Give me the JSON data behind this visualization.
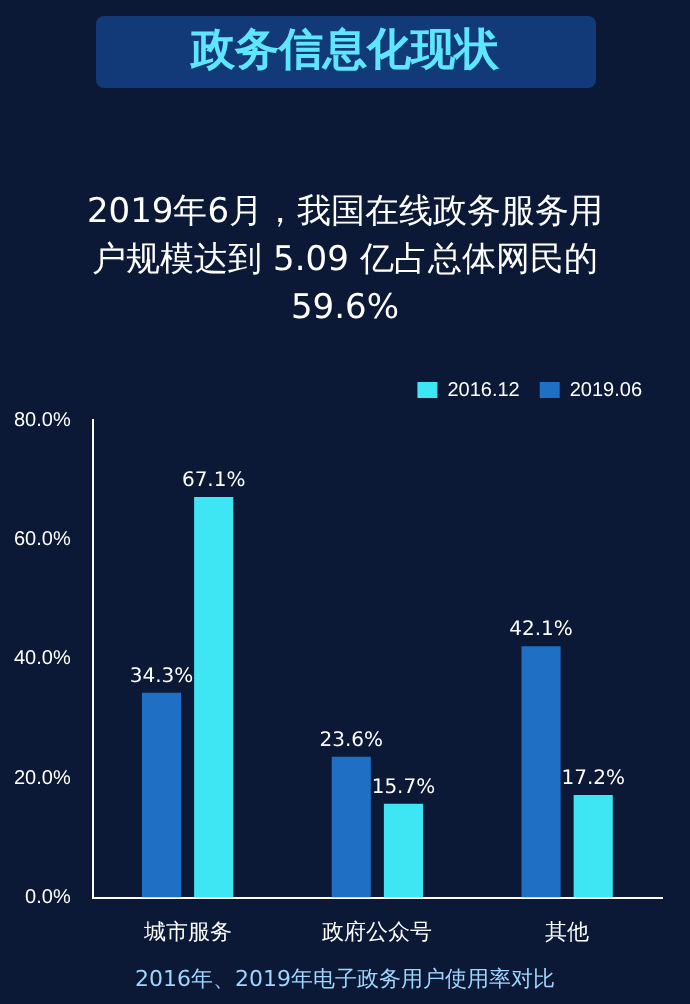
{
  "chart_data": {
    "type": "bar",
    "title": "政务信息化现状",
    "subtitle": "2019年6月，我国在线政务服务用户规模达到 5.09 亿占总体网民的 59.6%",
    "categories": [
      "城市服务",
      "政府公众号",
      "其他"
    ],
    "series": [
      {
        "name": "2019.06",
        "color": "#1f6fc4",
        "values": [
          34.3,
          23.6,
          42.1
        ],
        "value_labels": [
          "34.3%",
          "23.6%",
          "42.1%"
        ]
      },
      {
        "name": "2016.12",
        "color": "#3de6f2",
        "values": [
          67.1,
          15.7,
          17.2
        ],
        "value_labels": [
          "67.1%",
          "15.7%",
          "17.2%"
        ]
      }
    ],
    "ylim": [
      0,
      80
    ],
    "yticks": [
      {
        "value": 0,
        "label": "0.0%"
      },
      {
        "value": 20,
        "label": "20.0%"
      },
      {
        "value": 40,
        "label": "40.0%"
      },
      {
        "value": 60,
        "label": "60.0%"
      },
      {
        "value": 80,
        "label": "80.0%"
      }
    ],
    "grid": false,
    "legend": "top right",
    "annotations": [
      "2016年、2019年电子政务用户使用率对比"
    ]
  }
}
